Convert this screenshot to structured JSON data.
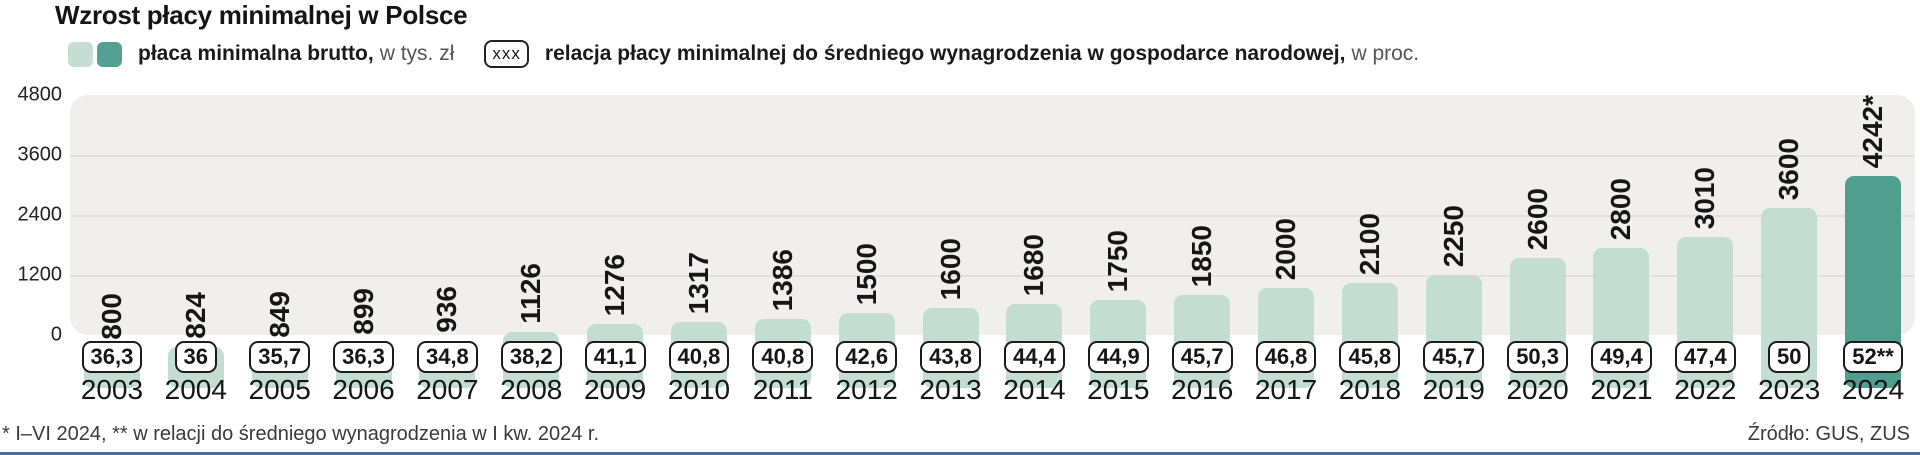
{
  "title": "Wzrost płacy minimalnej w Polsce",
  "legend": {
    "wage_label_bold": "płaca minimalna brutto,",
    "wage_label_rest": "w tys. zł",
    "xxx_box": "xxx",
    "relation_label_bold": "relacja płacy minimalnej do średniego wynagrodzenia w gospodarce narodowej,",
    "relation_label_rest": "w proc."
  },
  "footer": {
    "note": "* I–VI 2024, ** w relacji do średniego wynagrodzenia w I kw. 2024 r.",
    "source": "Źródło: GUS, ZUS"
  },
  "colors": {
    "bar": "#c4ddd3",
    "bar_highlight": "#4f9e8e",
    "plot_background": "#f0efed",
    "gridline": "#e2e1de",
    "bottom_rule": "#426f9e"
  },
  "chart_data": {
    "type": "bar",
    "title": "Wzrost płacy minimalnej w Polsce",
    "categories": [
      "2003",
      "2004",
      "2005",
      "2006",
      "2007",
      "2008",
      "2009",
      "2010",
      "2011",
      "2012",
      "2013",
      "2014",
      "2015",
      "2016",
      "2017",
      "2018",
      "2019",
      "2020",
      "2021",
      "2022",
      "2023",
      "2024"
    ],
    "series": [
      {
        "name": "płaca minimalna brutto, w tys. zł",
        "values": [
          800,
          824,
          849,
          899,
          936,
          1126,
          1276,
          1317,
          1386,
          1500,
          1600,
          1680,
          1750,
          1850,
          2000,
          2100,
          2250,
          2600,
          2800,
          3010,
          3600,
          4242
        ],
        "value_labels": [
          "800",
          "824",
          "849",
          "899",
          "936",
          "1126",
          "1276",
          "1317",
          "1386",
          "1500",
          "1600",
          "1680",
          "1750",
          "1850",
          "2000",
          "2100",
          "2250",
          "2600",
          "2800",
          "3010",
          "3600",
          "4242*"
        ]
      },
      {
        "name": "relacja płacy minimalnej do średniego wynagrodzenia w gospodarce narodowej, w proc.",
        "value_labels": [
          "36,3",
          "36",
          "35,7",
          "36,3",
          "34,8",
          "38,2",
          "41,1",
          "40,8",
          "40,8",
          "42,6",
          "43,8",
          "44,4",
          "44,9",
          "45,7",
          "46,8",
          "45,8",
          "45,7",
          "50,3",
          "49,4",
          "47,4",
          "50",
          "52**"
        ]
      }
    ],
    "ylim": [
      0,
      4800
    ],
    "yticks": [
      4800,
      3600,
      2400,
      1200,
      0
    ],
    "grid": true,
    "legend_position": "top",
    "highlight_last_bar": true
  }
}
